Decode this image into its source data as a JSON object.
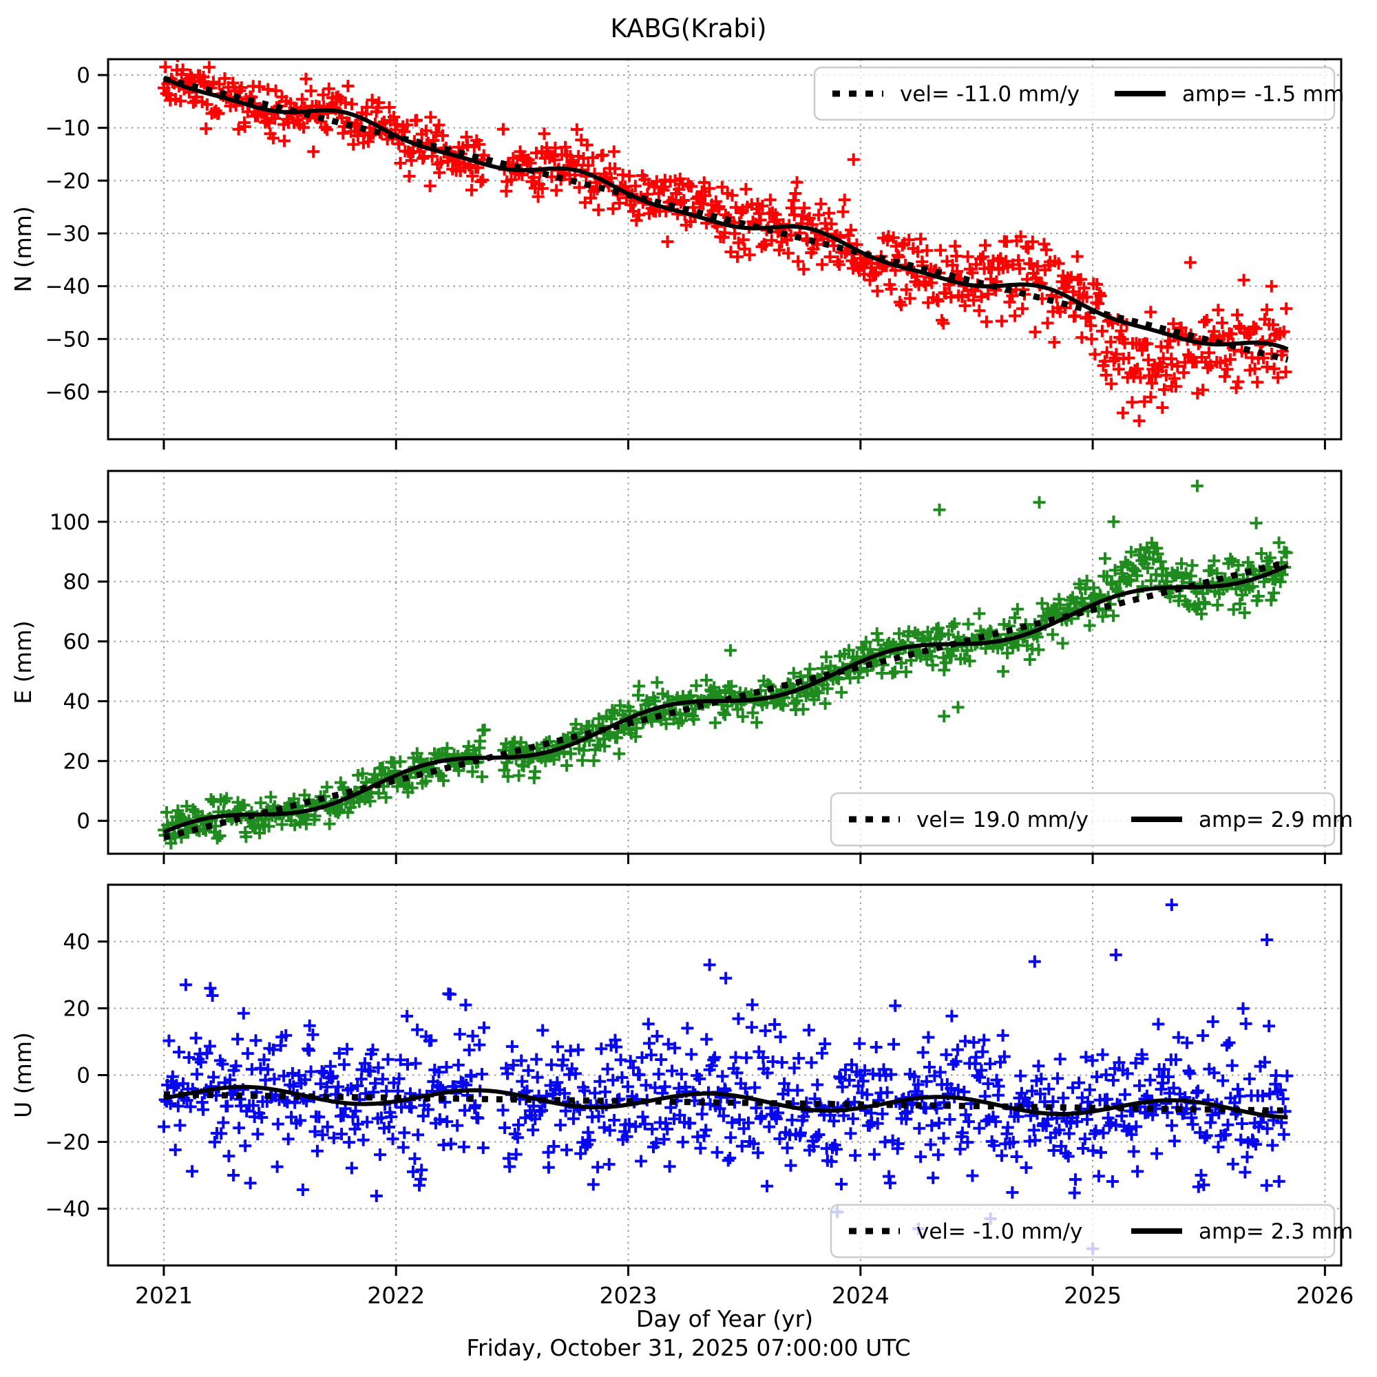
{
  "title": "KABG(Krabi)",
  "footer": {
    "timestamp": "Friday, October 31, 2025 07:00:00 UTC"
  },
  "x": {
    "label": "Day of Year (yr)",
    "lim": [
      2020.76,
      2026.07
    ],
    "ticks": [
      2021,
      2022,
      2023,
      2024,
      2025,
      2026
    ],
    "data_start": 2021.0,
    "data_end": 2025.84,
    "gaps": [
      [
        2022.38,
        2022.46
      ]
    ]
  },
  "style": {
    "grid_color": "#999999",
    "frame_color": "#000000",
    "fit_line_color": "#000000",
    "trend_line_color": "#000000",
    "legend_border": "#cccccc",
    "legend_bg_alpha": 0.8
  },
  "chart_data": [
    {
      "type": "scatter",
      "panel": "N",
      "ylabel": "N (mm)",
      "marker": "plus",
      "color": "#ff0000",
      "ylim": [
        -69,
        3
      ],
      "yticks": [
        0,
        -10,
        -20,
        -30,
        -40,
        -50,
        -60
      ],
      "legend": {
        "position": "upper right",
        "entries": [
          {
            "style": "dotted",
            "label": "vel= -11.0 mm/y"
          },
          {
            "style": "solid",
            "label": "amp= -1.5 mm"
          }
        ]
      },
      "fit": {
        "v0": -0.5,
        "vel": -11.0,
        "amp": -1.5,
        "phase": 0.05,
        "semi": 0.5,
        "semi_phase": 0.15
      },
      "trend": {
        "v0": -0.7,
        "vel": -11.0
      },
      "scatter": {
        "seed": 11,
        "noise_sd": [
          2.2,
          4.3
        ],
        "step_days": 2,
        "shifts": [
          [
            2025.05,
            2025.38,
            -6
          ],
          [
            2024.55,
            2024.75,
            3
          ],
          [
            2023.1,
            2023.35,
            2
          ]
        ],
        "outliers": [
          [
            2023.97,
            -16
          ],
          [
            2025.42,
            -35.5
          ],
          [
            2025.77,
            -40
          ],
          [
            2025.08,
            -58.5
          ],
          [
            2025.13,
            -64
          ],
          [
            2025.17,
            -62
          ],
          [
            2025.2,
            -65.5
          ],
          [
            2025.25,
            -61
          ],
          [
            2025.3,
            -63
          ],
          [
            2025.34,
            -59
          ]
        ]
      }
    },
    {
      "type": "scatter",
      "panel": "E",
      "ylabel": "E (mm)",
      "marker": "plus",
      "color": "#1f8b1f",
      "ylim": [
        -11,
        117
      ],
      "yticks": [
        0,
        20,
        40,
        60,
        80,
        100
      ],
      "legend": {
        "position": "lower right",
        "entries": [
          {
            "style": "dotted",
            "label": "vel= 19.0 mm/y"
          },
          {
            "style": "solid",
            "label": "amp= 2.9 mm"
          }
        ]
      },
      "fit": {
        "v0": -5.5,
        "vel": 19.0,
        "amp": 2.9,
        "phase": 0.9,
        "semi": 0,
        "semi_phase": 0
      },
      "trend": {
        "v0": -5.5,
        "vel": 19.0
      },
      "scatter": {
        "seed": 22,
        "noise_sd": [
          2.8,
          4.2
        ],
        "step_days": 2,
        "shifts": [
          [
            2024.9,
            2025.12,
            3
          ],
          [
            2025.12,
            2025.32,
            8
          ]
        ],
        "outliers": [
          [
            2023.44,
            57
          ],
          [
            2024.34,
            104
          ],
          [
            2024.36,
            35
          ],
          [
            2024.42,
            38
          ],
          [
            2024.77,
            106.5
          ],
          [
            2025.09,
            100
          ],
          [
            2025.45,
            112
          ]
        ]
      }
    },
    {
      "type": "scatter",
      "panel": "U",
      "ylabel": "U (mm)",
      "marker": "plus",
      "color": "#0808ee",
      "ylim": [
        -57,
        57
      ],
      "yticks": [
        40,
        20,
        0,
        -20,
        -40
      ],
      "legend": {
        "position": "lower right",
        "entries": [
          {
            "style": "dotted",
            "label": "vel= -1.0 mm/y"
          },
          {
            "style": "solid",
            "label": "amp= 2.3 mm"
          }
        ]
      },
      "fit": {
        "v0": -5.5,
        "vel": -1.0,
        "amp": 2.3,
        "phase": 0.1,
        "semi": 0,
        "semi_phase": 0
      },
      "trend": {
        "v0": -5.8,
        "vel": -1.0
      },
      "scatter": {
        "seed": 33,
        "noise_sd": [
          9.5,
          10.5
        ],
        "step_days": 2,
        "shifts": [],
        "outliers": [
          [
            2021.2,
            26
          ],
          [
            2021.3,
            -30
          ],
          [
            2022.1,
            -33
          ],
          [
            2022.3,
            21
          ],
          [
            2023.35,
            33
          ],
          [
            2023.42,
            29
          ],
          [
            2023.9,
            -41
          ],
          [
            2024.25,
            -46
          ],
          [
            2024.56,
            -43
          ],
          [
            2024.75,
            34
          ],
          [
            2025.0,
            -52
          ],
          [
            2025.1,
            36
          ],
          [
            2025.34,
            51
          ],
          [
            2025.75,
            40.5
          ]
        ]
      }
    }
  ]
}
